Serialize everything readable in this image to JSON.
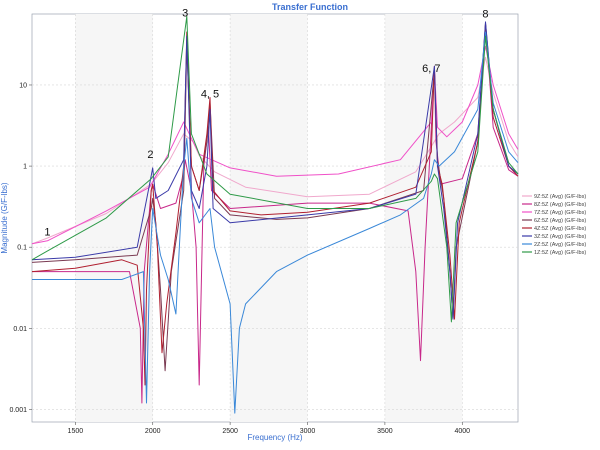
{
  "chart_data": {
    "type": "line",
    "title": "Transfer Function",
    "xlabel": "Frequency (Hz)",
    "ylabel": "Magnitude (G/F-lbs)",
    "xscale": "linear",
    "yscale": "log",
    "xlim": [
      1220,
      4360
    ],
    "ylim": [
      0.0007,
      75
    ],
    "xticks": [
      1500,
      2000,
      2500,
      3000,
      3500,
      4000
    ],
    "xtick_labels": [
      "1500",
      "2000",
      "2500",
      "3000",
      "3500",
      "4000"
    ],
    "yticks": [
      0.001,
      0.01,
      0.1,
      1,
      10
    ],
    "ytick_labels": [
      "0.001",
      "0.01",
      "0.1",
      "1",
      "10"
    ],
    "grid": true,
    "legend_position": "right",
    "annotations": [
      {
        "text": "1",
        "x": 1320,
        "y": 0.14
      },
      {
        "text": "2",
        "x": 1985,
        "y": 1.25
      },
      {
        "text": "3",
        "x": 2210,
        "y": 70
      },
      {
        "text": "4, 5",
        "x": 2370,
        "y": 7.0
      },
      {
        "text": "6, 7",
        "x": 3800,
        "y": 14.5
      },
      {
        "text": "8",
        "x": 4150,
        "y": 68
      }
    ],
    "series": [
      {
        "name": "9Z:5Z (Avg) (G/F-lbs)",
        "color": "#f0a8cc",
        "points": [
          [
            1220,
            0.11
          ],
          [
            1320,
            0.13
          ],
          [
            1700,
            0.26
          ],
          [
            1990,
            0.6
          ],
          [
            2100,
            1.1
          ],
          [
            2200,
            2.5
          ],
          [
            2260,
            2.0
          ],
          [
            2300,
            1.35
          ],
          [
            2400,
            0.85
          ],
          [
            2600,
            0.55
          ],
          [
            3000,
            0.42
          ],
          [
            3400,
            0.45
          ],
          [
            3700,
            0.85
          ],
          [
            3850,
            2.5
          ],
          [
            3950,
            3.5
          ],
          [
            4100,
            7
          ],
          [
            4150,
            22
          ],
          [
            4200,
            8
          ],
          [
            4300,
            2
          ],
          [
            4360,
            1.3
          ]
        ]
      },
      {
        "name": "8Z:5Z (Avg) (G/F-lbs)",
        "color": "#c8288a",
        "points": [
          [
            1220,
            0.05
          ],
          [
            1500,
            0.05
          ],
          [
            1850,
            0.05
          ],
          [
            1920,
            0.01
          ],
          [
            1930,
            0.0012
          ],
          [
            1945,
            0.05
          ],
          [
            1990,
            0.5
          ],
          [
            2000,
            0.6
          ],
          [
            2050,
            0.3
          ],
          [
            2150,
            0.35
          ],
          [
            2200,
            0.8
          ],
          [
            2210,
            1.2
          ],
          [
            2250,
            0.5
          ],
          [
            2280,
            0.1
          ],
          [
            2300,
            0.002
          ],
          [
            2330,
            1.0
          ],
          [
            2360,
            3.0
          ],
          [
            2380,
            0.5
          ],
          [
            2500,
            0.3
          ],
          [
            3000,
            0.35
          ],
          [
            3400,
            0.35
          ],
          [
            3650,
            0.28
          ],
          [
            3700,
            0.05
          ],
          [
            3730,
            0.004
          ],
          [
            3760,
            0.1
          ],
          [
            3820,
            16
          ],
          [
            3830,
            2
          ],
          [
            3860,
            0.6
          ],
          [
            4000,
            0.7
          ],
          [
            4100,
            2.5
          ],
          [
            4150,
            55
          ],
          [
            4200,
            3
          ],
          [
            4300,
            0.9
          ],
          [
            4360,
            0.75
          ]
        ]
      },
      {
        "name": "7Z:5Z (Avg) (G/F-lbs)",
        "color": "#f050c8",
        "points": [
          [
            1220,
            0.11
          ],
          [
            1320,
            0.12
          ],
          [
            1700,
            0.28
          ],
          [
            1980,
            0.55
          ],
          [
            2100,
            1.4
          ],
          [
            2200,
            3.5
          ],
          [
            2250,
            2.2
          ],
          [
            2300,
            1.4
          ],
          [
            2500,
            0.95
          ],
          [
            2800,
            0.75
          ],
          [
            3200,
            0.8
          ],
          [
            3600,
            1.2
          ],
          [
            3800,
            3.5
          ],
          [
            3820,
            16
          ],
          [
            3840,
            3.0
          ],
          [
            3900,
            2.3
          ],
          [
            4000,
            3.5
          ],
          [
            4100,
            10
          ],
          [
            4150,
            30
          ],
          [
            4200,
            10
          ],
          [
            4300,
            2.5
          ],
          [
            4360,
            1.6
          ]
        ]
      },
      {
        "name": "6Z:5Z (Avg) (G/F-lbs)",
        "color": "#7a3a52",
        "points": [
          [
            1220,
            0.065
          ],
          [
            1500,
            0.07
          ],
          [
            1900,
            0.08
          ],
          [
            1990,
            0.3
          ],
          [
            2000,
            0.4
          ],
          [
            2020,
            0.2
          ],
          [
            2050,
            0.03
          ],
          [
            2080,
            0.003
          ],
          [
            2120,
            0.05
          ],
          [
            2200,
            0.5
          ],
          [
            2220,
            30
          ],
          [
            2250,
            1.0
          ],
          [
            2300,
            0.5
          ],
          [
            2350,
            2.0
          ],
          [
            2370,
            6.0
          ],
          [
            2400,
            0.4
          ],
          [
            2500,
            0.25
          ],
          [
            2800,
            0.22
          ],
          [
            3000,
            0.23
          ],
          [
            3400,
            0.3
          ],
          [
            3750,
            0.5
          ],
          [
            3820,
            15
          ],
          [
            3840,
            1.2
          ],
          [
            3880,
            0.4
          ],
          [
            3920,
            0.05
          ],
          [
            3940,
            0.013
          ],
          [
            3960,
            0.1
          ],
          [
            4100,
            2.0
          ],
          [
            4150,
            58
          ],
          [
            4200,
            5
          ],
          [
            4300,
            1.0
          ],
          [
            4360,
            0.8
          ]
        ]
      },
      {
        "name": "4Z:5Z (Avg) (G/F-lbs)",
        "color": "#b02030",
        "points": [
          [
            1220,
            0.05
          ],
          [
            1500,
            0.055
          ],
          [
            1800,
            0.07
          ],
          [
            1900,
            0.06
          ],
          [
            1940,
            0.01
          ],
          [
            1950,
            0.002
          ],
          [
            1960,
            0.03
          ],
          [
            1990,
            0.5
          ],
          [
            2000,
            0.6
          ],
          [
            2030,
            0.1
          ],
          [
            2060,
            0.005
          ],
          [
            2090,
            0.02
          ],
          [
            2150,
            0.15
          ],
          [
            2200,
            1.0
          ],
          [
            2220,
            45
          ],
          [
            2250,
            1.0
          ],
          [
            2300,
            0.5
          ],
          [
            2350,
            2.5
          ],
          [
            2370,
            7.0
          ],
          [
            2390,
            0.5
          ],
          [
            2500,
            0.28
          ],
          [
            2700,
            0.25
          ],
          [
            3000,
            0.27
          ],
          [
            3400,
            0.35
          ],
          [
            3700,
            0.55
          ],
          [
            3800,
            1.5
          ],
          [
            3820,
            17
          ],
          [
            3840,
            1.0
          ],
          [
            3870,
            0.6
          ],
          [
            3920,
            0.08
          ],
          [
            3950,
            0.013
          ],
          [
            3980,
            0.2
          ],
          [
            4100,
            2.0
          ],
          [
            4150,
            55
          ],
          [
            4200,
            4
          ],
          [
            4300,
            1.0
          ],
          [
            4360,
            0.75
          ]
        ]
      },
      {
        "name": "3Z:5Z (Avg) (G/F-lbs)",
        "color": "#3a3aa8",
        "points": [
          [
            1220,
            0.07
          ],
          [
            1500,
            0.075
          ],
          [
            1900,
            0.1
          ],
          [
            1980,
            0.6
          ],
          [
            2000,
            0.95
          ],
          [
            2020,
            0.4
          ],
          [
            2100,
            0.5
          ],
          [
            2200,
            1.2
          ],
          [
            2220,
            40
          ],
          [
            2250,
            0.5
          ],
          [
            2300,
            0.3
          ],
          [
            2350,
            1.0
          ],
          [
            2370,
            5.0
          ],
          [
            2390,
            0.3
          ],
          [
            2500,
            0.2
          ],
          [
            3000,
            0.25
          ],
          [
            3400,
            0.3
          ],
          [
            3700,
            0.45
          ],
          [
            3820,
            17
          ],
          [
            3840,
            1.0
          ],
          [
            3880,
            0.3
          ],
          [
            3920,
            0.05
          ],
          [
            3940,
            0.013
          ],
          [
            3970,
            0.2
          ],
          [
            4100,
            2.5
          ],
          [
            4150,
            60
          ],
          [
            4200,
            5
          ],
          [
            4300,
            1.0
          ],
          [
            4360,
            0.8
          ]
        ]
      },
      {
        "name": "2Z:5Z (Avg) (G/F-lbs)",
        "color": "#3a88d8",
        "points": [
          [
            1220,
            0.04
          ],
          [
            1500,
            0.04
          ],
          [
            1800,
            0.04
          ],
          [
            1940,
            0.05
          ],
          [
            1960,
            0.0012
          ],
          [
            1980,
            0.05
          ],
          [
            2000,
            0.3
          ],
          [
            2050,
            0.08
          ],
          [
            2100,
            0.04
          ],
          [
            2150,
            0.015
          ],
          [
            2180,
            0.2
          ],
          [
            2200,
            1.0
          ],
          [
            2220,
            2.2
          ],
          [
            2250,
            0.4
          ],
          [
            2300,
            0.2
          ],
          [
            2370,
            0.3
          ],
          [
            2400,
            0.1
          ],
          [
            2500,
            0.02
          ],
          [
            2530,
            0.0009
          ],
          [
            2560,
            0.01
          ],
          [
            2600,
            0.02
          ],
          [
            2800,
            0.05
          ],
          [
            3000,
            0.08
          ],
          [
            3400,
            0.17
          ],
          [
            3600,
            0.25
          ],
          [
            3750,
            0.4
          ],
          [
            3800,
            0.8
          ],
          [
            3820,
            1.2
          ],
          [
            3850,
            1.0
          ],
          [
            3950,
            1.5
          ],
          [
            4100,
            5
          ],
          [
            4150,
            45
          ],
          [
            4200,
            6
          ],
          [
            4300,
            1.5
          ],
          [
            4360,
            1.1
          ]
        ]
      },
      {
        "name": "1Z:5Z (Avg) (G/F-lbs)",
        "color": "#2e9a48",
        "points": [
          [
            1220,
            0.07
          ],
          [
            1320,
            0.09
          ],
          [
            1700,
            0.23
          ],
          [
            1990,
            0.7
          ],
          [
            2100,
            1.3
          ],
          [
            2220,
            70
          ],
          [
            2250,
            2.5
          ],
          [
            2350,
            0.8
          ],
          [
            2500,
            0.45
          ],
          [
            3000,
            0.3
          ],
          [
            3400,
            0.3
          ],
          [
            3700,
            0.4
          ],
          [
            3800,
            0.65
          ],
          [
            3820,
            0.8
          ],
          [
            3840,
            0.7
          ],
          [
            3900,
            0.1
          ],
          [
            3930,
            0.012
          ],
          [
            3960,
            0.2
          ],
          [
            4100,
            1.5
          ],
          [
            4150,
            40
          ],
          [
            4200,
            5
          ],
          [
            4300,
            1.1
          ],
          [
            4360,
            0.8
          ]
        ]
      }
    ]
  }
}
